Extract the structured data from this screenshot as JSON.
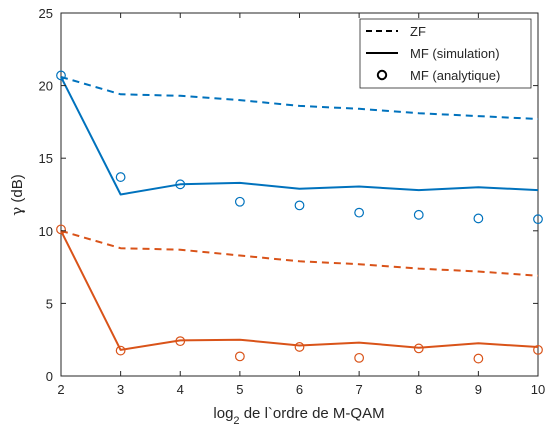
{
  "chart_data": {
    "type": "line",
    "title": "",
    "xlabel": {
      "base": "log",
      "sub": "2",
      "rest": " de l`ordre de M-QAM"
    },
    "ylabel": {
      "greek": "γ",
      "rest": " (dB)"
    },
    "xlim": [
      2,
      10
    ],
    "ylim": [
      0,
      25
    ],
    "xticks": [
      2,
      3,
      4,
      5,
      6,
      7,
      8,
      9,
      10
    ],
    "yticks": [
      0,
      5,
      10,
      15,
      20,
      25
    ],
    "grid": false,
    "legend": {
      "placement": "top-right",
      "entries": [
        {
          "label": "ZF",
          "style": "dashed"
        },
        {
          "label": "MF (simulation)",
          "style": "solid"
        },
        {
          "label": "MF (analytique)",
          "style": "circle"
        }
      ]
    },
    "colors": {
      "blue": "#0072BD",
      "orange": "#D95319",
      "legend": "#000000"
    },
    "x": [
      2,
      3,
      4,
      5,
      6,
      7,
      8,
      9,
      10
    ],
    "series": [
      {
        "kind": "ZF",
        "style": "dashed",
        "color": "blue",
        "values": [
          20.6,
          19.4,
          19.3,
          19.0,
          18.6,
          18.4,
          18.1,
          17.9,
          17.7
        ]
      },
      {
        "kind": "MF (simulation)",
        "style": "solid",
        "color": "blue",
        "values": [
          20.6,
          12.5,
          13.2,
          13.3,
          12.9,
          13.05,
          12.8,
          13.0,
          12.8
        ]
      },
      {
        "kind": "MF (analytique)",
        "style": "circle",
        "color": "blue",
        "values": [
          20.7,
          13.7,
          13.2,
          12.0,
          11.75,
          11.25,
          11.1,
          10.85,
          10.8
        ]
      },
      {
        "kind": "ZF",
        "style": "dashed",
        "color": "orange",
        "values": [
          10.0,
          8.8,
          8.7,
          8.3,
          7.9,
          7.7,
          7.4,
          7.2,
          6.9
        ]
      },
      {
        "kind": "MF (simulation)",
        "style": "solid",
        "color": "orange",
        "values": [
          10.0,
          1.8,
          2.45,
          2.5,
          2.1,
          2.3,
          1.95,
          2.25,
          2.0
        ]
      },
      {
        "kind": "MF (analytique)",
        "style": "circle",
        "color": "orange",
        "values": [
          10.1,
          1.75,
          2.4,
          1.35,
          2.0,
          1.25,
          1.9,
          1.2,
          1.8
        ]
      }
    ]
  }
}
